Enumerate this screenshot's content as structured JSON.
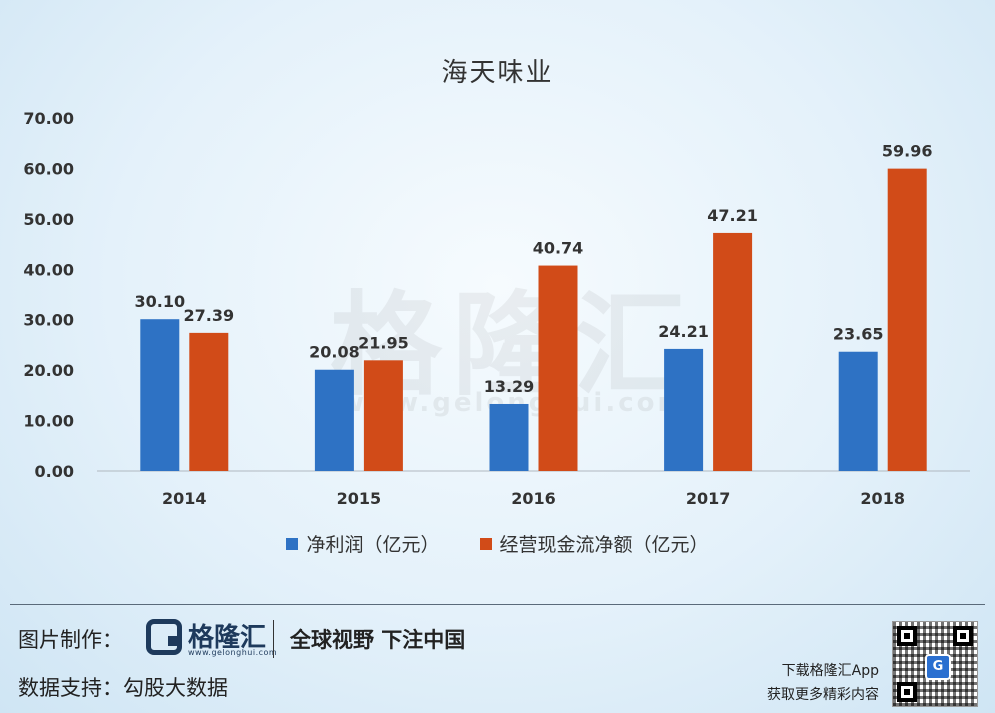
{
  "chart_data": {
    "type": "bar",
    "title": "海天味业",
    "categories": [
      "2014",
      "2015",
      "2016",
      "2017",
      "2018"
    ],
    "series": [
      {
        "name": "净利润（亿元）",
        "values": [
          30.1,
          20.08,
          13.29,
          24.21,
          23.65
        ],
        "color": "#2e72c4"
      },
      {
        "name": "经营现金流净额（亿元）",
        "values": [
          27.39,
          21.95,
          40.74,
          47.21,
          59.96
        ],
        "color": "#d14b18"
      }
    ],
    "ylim": [
      0,
      70
    ],
    "yticks": [
      "0.00",
      "10.00",
      "20.00",
      "30.00",
      "40.00",
      "50.00",
      "60.00",
      "70.00"
    ],
    "grid": false,
    "legend_position": "bottom",
    "data_labels": true
  },
  "watermark": {
    "text": "格隆汇",
    "url": "www.gelonghui.com"
  },
  "footer": {
    "made_by_label": "图片制作：",
    "logo_text": "格隆汇",
    "logo_url": "www.gelonghui.com",
    "slogan": "全球视野 下注中国",
    "source_label": "数据支持：勾股大数据",
    "app_line1": "下载格隆汇App",
    "app_line2": "获取更多精彩内容",
    "qr_center_icon": "G"
  }
}
